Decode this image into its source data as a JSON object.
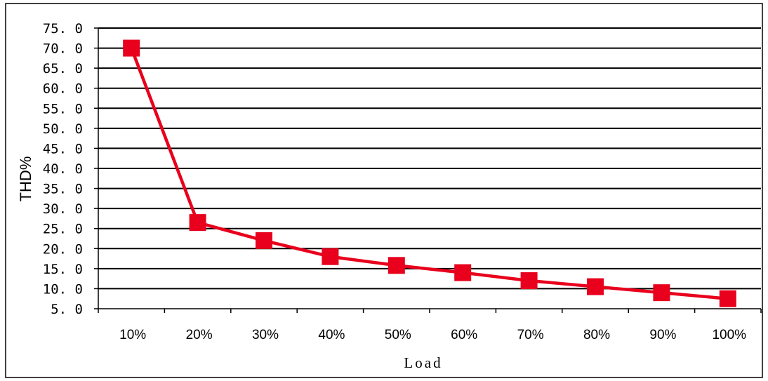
{
  "chart_data": {
    "type": "line",
    "categories": [
      "10%",
      "20%",
      "30%",
      "40%",
      "50%",
      "60%",
      "70%",
      "80%",
      "90%",
      "100%"
    ],
    "series": [
      {
        "values": [
          70.0,
          26.5,
          22.0,
          18.0,
          15.8,
          14.0,
          12.0,
          10.5,
          9.0,
          7.5
        ]
      }
    ],
    "yticks": [
      "5. 0",
      "10. 0",
      "15. 0",
      "20. 0",
      "25. 0",
      "30. 0",
      "35. 0",
      "40. 0",
      "45. 0",
      "50. 0",
      "55. 0",
      "60. 0",
      "65. 0",
      "70. 0",
      "75. 0"
    ],
    "ylim": [
      5,
      75
    ],
    "ystep": 5,
    "xlabel": "Load",
    "ylabel": "THD%",
    "title": "",
    "grid": true,
    "legend": "none",
    "colors": {
      "series": "#e8001c",
      "marker": "#e8001c",
      "grid": "#000000",
      "frame": "#000000"
    }
  }
}
